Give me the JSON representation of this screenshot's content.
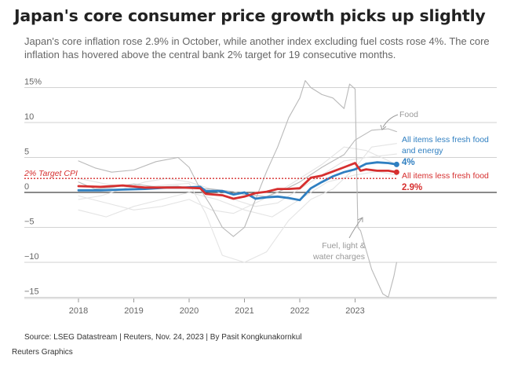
{
  "header": {
    "title": "Japan's core consumer price growth picks up slightly",
    "subtitle": "Japan's core inflation rose 2.9% in October, while another index excluding fuel costs rose 4%. The core inflation has hovered above the central bank 2% target for 19 consecutive months."
  },
  "footer": {
    "source": "Source: LSEG Datastream | Reuters, Nov. 24, 2023 | By Pasit Kongkunakornkul",
    "credit": "Reuters Graphics"
  },
  "colors": {
    "core": "#d62f2f",
    "core_ex_energy": "#2f7fc1",
    "food": "#b9b9b9",
    "fuel": "#b9b9b9",
    "background_lines": "#e4e4e4",
    "target": "#d62f2f"
  },
  "chart_data": {
    "type": "line",
    "x_unit": "year",
    "ylim": [
      -15,
      15
    ],
    "yticks": [
      15,
      10,
      5,
      0,
      -5,
      -10,
      -15
    ],
    "ytick_labels": [
      "15%",
      "10",
      "5",
      "0",
      "−5",
      "−10",
      "−15"
    ],
    "xticks": [
      2018,
      2019,
      2020,
      2021,
      2022,
      2023
    ],
    "xtick_labels": [
      "2018",
      "2019",
      "2020",
      "2021",
      "2022",
      "2023"
    ],
    "reference_line": {
      "value": 2,
      "label": "2% Target CPI"
    },
    "series": [
      {
        "name": "All items less fresh food and energy",
        "value_label": "4%",
        "color": "#2f7fc1",
        "x": [
          2018.0,
          2018.4,
          2018.8,
          2019.2,
          2019.6,
          2019.9,
          2020.2,
          2020.3,
          2020.6,
          2020.8,
          2021.0,
          2021.2,
          2021.4,
          2021.6,
          2021.8,
          2022.0,
          2022.2,
          2022.4,
          2022.6,
          2022.8,
          2023.0,
          2023.2,
          2023.4,
          2023.6,
          2023.75
        ],
        "y": [
          0.3,
          0.3,
          0.4,
          0.5,
          0.7,
          0.7,
          0.8,
          0.2,
          0.2,
          -0.3,
          0.0,
          -0.9,
          -0.7,
          -0.6,
          -0.8,
          -1.1,
          0.6,
          1.5,
          2.3,
          2.9,
          3.3,
          4.1,
          4.3,
          4.2,
          4.0
        ]
      },
      {
        "name": "All items less fresh food",
        "value_label": "2.9%",
        "color": "#d62f2f",
        "x": [
          2018.0,
          2018.4,
          2018.8,
          2019.2,
          2019.6,
          2019.9,
          2020.2,
          2020.3,
          2020.6,
          2020.8,
          2021.0,
          2021.2,
          2021.4,
          2021.6,
          2021.8,
          2022.0,
          2022.2,
          2022.4,
          2022.6,
          2022.8,
          2023.0,
          2023.1,
          2023.2,
          2023.4,
          2023.6,
          2023.75
        ],
        "y": [
          0.9,
          0.8,
          1.0,
          0.7,
          0.7,
          0.7,
          0.6,
          -0.2,
          -0.4,
          -0.9,
          -0.6,
          -0.1,
          0.1,
          0.5,
          0.5,
          0.6,
          2.1,
          2.4,
          3.0,
          3.6,
          4.2,
          3.1,
          3.3,
          3.1,
          3.1,
          2.9
        ]
      },
      {
        "name": "Food",
        "color": "#b9b9b9",
        "x": [
          2018.0,
          2018.3,
          2018.6,
          2019.0,
          2019.4,
          2019.8,
          2020.0,
          2020.4,
          2020.8,
          2021.0,
          2021.4,
          2021.8,
          2022.0,
          2022.4,
          2022.8,
          2023.0,
          2023.3,
          2023.6,
          2023.75
        ],
        "y": [
          1.5,
          0.5,
          0.7,
          1.2,
          0.8,
          0.9,
          0.6,
          0.5,
          0.1,
          -0.3,
          -0.6,
          0.7,
          1.5,
          3.6,
          5.4,
          7.5,
          8.9,
          9.1,
          8.7
        ]
      },
      {
        "name": "Fuel, light & water charges",
        "color": "#b9b9b9",
        "x": [
          2018.0,
          2018.3,
          2018.6,
          2019.0,
          2019.4,
          2019.8,
          2020.0,
          2020.2,
          2020.4,
          2020.6,
          2020.8,
          2021.0,
          2021.2,
          2021.4,
          2021.6,
          2021.8,
          2022.0,
          2022.1,
          2022.2,
          2022.4,
          2022.6,
          2022.8,
          2022.9,
          2023.0,
          2023.05,
          2023.1,
          2023.3,
          2023.5,
          2023.6,
          2023.7,
          2023.75
        ],
        "y": [
          4.5,
          3.5,
          2.9,
          3.2,
          4.4,
          5.0,
          3.6,
          0.5,
          -2.0,
          -5.0,
          -6.3,
          -5.0,
          -1.0,
          3.0,
          6.5,
          10.7,
          13.5,
          16.0,
          15.0,
          14.0,
          13.5,
          12.0,
          15.5,
          14.8,
          -5.0,
          -5.5,
          -11.0,
          -14.5,
          -15.0,
          -12.0,
          -10.0
        ]
      },
      {
        "name": "",
        "color": "#e4e4e4",
        "x": [
          2018.0,
          2018.5,
          2019.0,
          2019.5,
          2020.0,
          2020.3,
          2020.6,
          2021.0,
          2021.4,
          2021.8,
          2022.2,
          2022.6,
          2023.0,
          2023.3,
          2023.75
        ],
        "y": [
          2.0,
          1.2,
          0.6,
          1.0,
          1.3,
          -3.0,
          -9.0,
          -10.0,
          -8.5,
          -4.0,
          -1.0,
          0.5,
          3.5,
          6.5,
          7.0
        ]
      },
      {
        "name": "",
        "color": "#e4e4e4",
        "x": [
          2018.0,
          2018.5,
          2019.0,
          2019.5,
          2020.0,
          2020.4,
          2020.8,
          2021.2,
          2021.6,
          2022.0,
          2022.4,
          2022.8,
          2023.2,
          2023.75
        ],
        "y": [
          -0.5,
          -1.5,
          -2.5,
          -2.0,
          -1.0,
          -2.5,
          -3.0,
          -1.5,
          0.0,
          2.0,
          4.0,
          6.5,
          6.0,
          4.0
        ]
      },
      {
        "name": "",
        "color": "#e4e4e4",
        "x": [
          2018.0,
          2018.4,
          2018.8,
          2019.2,
          2019.6,
          2020.0,
          2020.4,
          2020.8,
          2021.2,
          2021.6,
          2022.0,
          2022.4,
          2022.8,
          2023.2,
          2023.75
        ],
        "y": [
          -1.0,
          -0.5,
          0.5,
          1.5,
          2.0,
          1.5,
          0.5,
          -1.0,
          -2.0,
          -1.5,
          0.5,
          2.5,
          4.5,
          5.0,
          5.5
        ]
      },
      {
        "name": "",
        "color": "#e4e4e4",
        "x": [
          2018.0,
          2018.5,
          2019.0,
          2019.5,
          2020.0,
          2020.5,
          2021.0,
          2021.5,
          2022.0,
          2022.5,
          2023.0,
          2023.4,
          2023.75
        ],
        "y": [
          -2.5,
          -3.5,
          -2.0,
          -1.0,
          0.0,
          -1.0,
          -2.5,
          -3.5,
          -1.0,
          1.5,
          2.5,
          3.0,
          2.5
        ]
      }
    ]
  }
}
